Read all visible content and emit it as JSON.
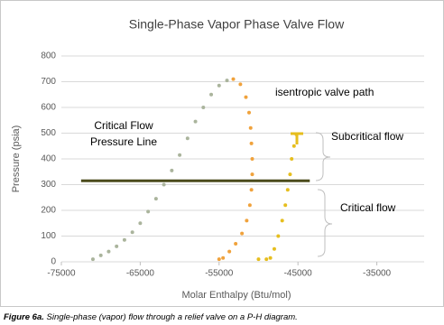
{
  "chart_data": {
    "type": "scatter",
    "title": "Single-Phase Vapor Phase Valve Flow",
    "x_label": "Molar Enthalpy (Btu/mol)",
    "y_label": "Pressure (psia)",
    "xlim": [
      -75000,
      -29000
    ],
    "xticks": [
      -75000,
      -65000,
      -55000,
      -45000,
      -35000
    ],
    "ylim": [
      0,
      800
    ],
    "yticks": [
      0,
      100,
      200,
      300,
      400,
      500,
      600,
      700,
      800
    ],
    "grid": true,
    "series": [
      {
        "color": "#aab49c",
        "mode": "dots",
        "x": [
          -71000,
          -70000,
          -69000,
          -68000,
          -67000,
          -66000,
          -65000,
          -64000,
          -63000,
          -62000,
          -61000,
          -60000,
          -59000,
          -58000,
          -57000,
          -56000,
          -55000,
          -54000
        ],
        "values": [
          10,
          25,
          40,
          60,
          85,
          115,
          150,
          195,
          245,
          300,
          355,
          415,
          480,
          545,
          600,
          650,
          685,
          705
        ]
      },
      {
        "color": "#f0a23c",
        "mode": "dots",
        "x": [
          -53200,
          -52300,
          -51600,
          -51200,
          -51000,
          -50900,
          -50800,
          -50800,
          -50900,
          -51100,
          -51500,
          -52100,
          -52900,
          -53700,
          -54500,
          -55000
        ],
        "values": [
          710,
          690,
          640,
          580,
          520,
          460,
          400,
          340,
          280,
          220,
          160,
          110,
          70,
          40,
          15,
          10
        ]
      },
      {
        "color": "#e6be1e",
        "mode": "dots",
        "x": [
          -50000,
          -49000,
          -48500,
          -48000,
          -47500,
          -47000,
          -46600,
          -46300,
          -46000,
          -45800,
          -45500,
          -45200
        ],
        "values": [
          10,
          10,
          15,
          50,
          100,
          160,
          220,
          280,
          340,
          400,
          450,
          495
        ]
      },
      {
        "color": "#4b4b1c",
        "mode": "line",
        "x": [
          -72500,
          -43500
        ],
        "values": [
          315,
          315
        ]
      }
    ],
    "annotations": [
      "isentropic valve path",
      "Critical Flow",
      "Pressure Line",
      "Subcritical flow",
      "Critical flow"
    ],
    "caption_label": "Figure 6a.",
    "caption_text": "Single-phase (vapor) flow through a relief valve on a P-H diagram."
  }
}
